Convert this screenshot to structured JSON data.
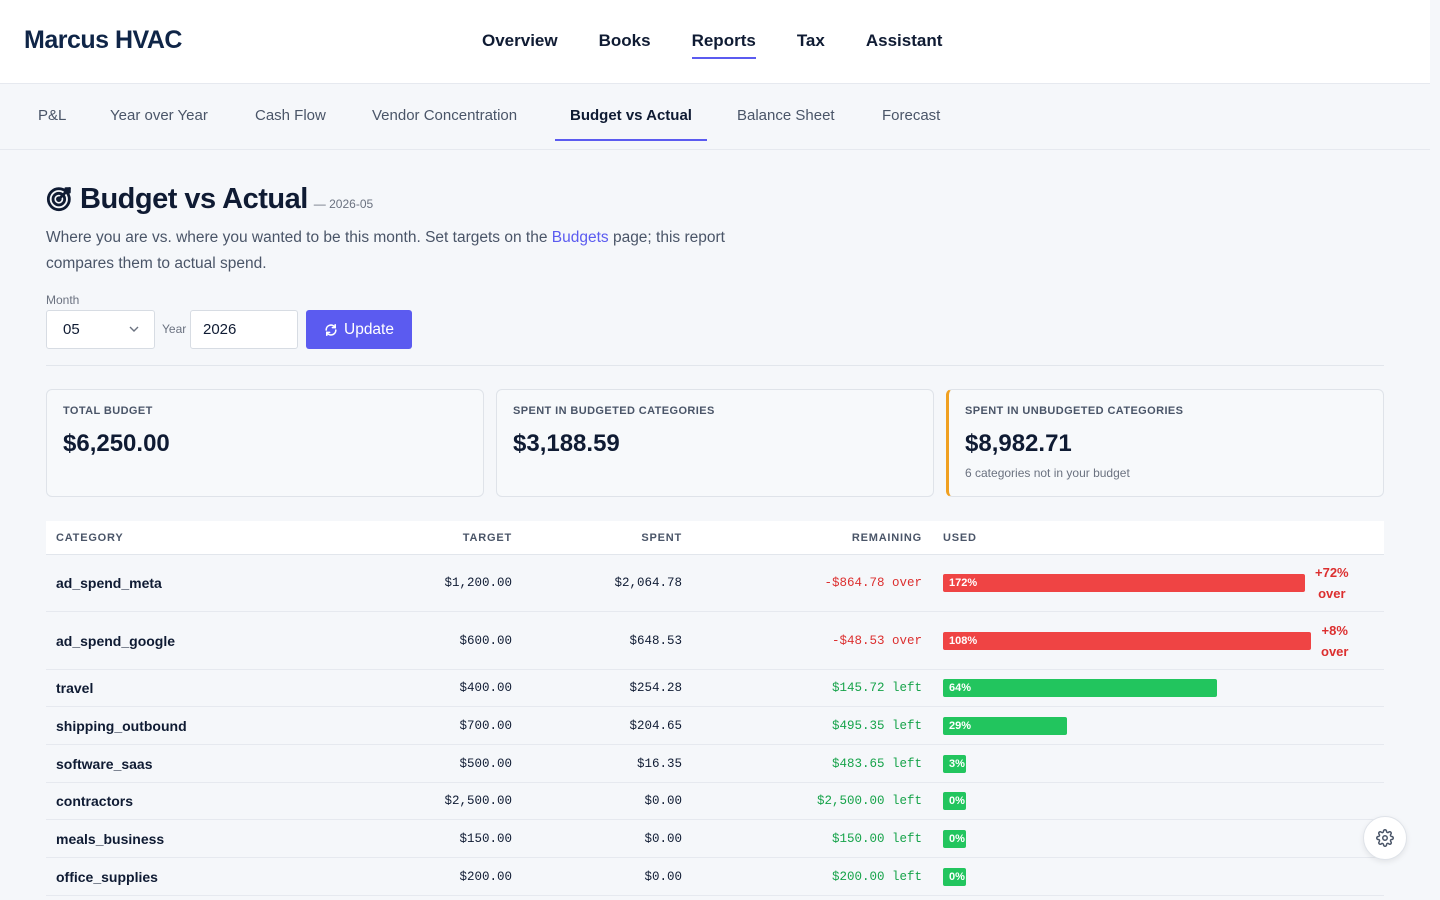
{
  "brand": "Marcus HVAC",
  "nav": {
    "items": [
      {
        "label": "Overview"
      },
      {
        "label": "Books"
      },
      {
        "label": "Reports"
      },
      {
        "label": "Tax"
      },
      {
        "label": "Assistant"
      }
    ],
    "active": "Reports"
  },
  "subnav": {
    "tabs": [
      {
        "label": "P&L"
      },
      {
        "label": "Year over Year"
      },
      {
        "label": "Cash Flow"
      },
      {
        "label": "Vendor Concentration"
      },
      {
        "label": "Budget vs Actual"
      },
      {
        "label": "Balance Sheet"
      },
      {
        "label": "Forecast"
      }
    ],
    "active": "Budget vs Actual"
  },
  "page": {
    "title": "Budget vs Actual",
    "period": "— 2026-05",
    "desc_before": "Where you are vs. where you wanted to be this month. Set targets on the ",
    "desc_link": "Budgets",
    "desc_after": " page; this report compares them to actual spend."
  },
  "filters": {
    "month_label": "Month",
    "month_value": "05",
    "year_label": "Year",
    "year_value": "2026",
    "update_label": "Update"
  },
  "cards": [
    {
      "label": "TOTAL BUDGET",
      "value": "$6,250.00",
      "note": ""
    },
    {
      "label": "SPENT IN BUDGETED CATEGORIES",
      "value": "$3,188.59",
      "note": ""
    },
    {
      "label": "SPENT IN UNBUDGETED CATEGORIES",
      "value": "$8,982.71",
      "note": "6 categories not in your budget"
    }
  ],
  "table": {
    "headers": {
      "category": "CATEGORY",
      "target": "TARGET",
      "spent": "SPENT",
      "remaining": "REMAINING",
      "used": "USED"
    },
    "rows": [
      {
        "category": "ad_spend_meta",
        "target": "$1,200.00",
        "spent": "$2,064.78",
        "remaining": "-$864.78 over",
        "status": "over",
        "used_pct": 172,
        "used_label": "172%",
        "over_tag_1": "+72%",
        "over_tag_2": "over"
      },
      {
        "category": "ad_spend_google",
        "target": "$600.00",
        "spent": "$648.53",
        "remaining": "-$48.53 over",
        "status": "over",
        "used_pct": 108,
        "used_label": "108%",
        "over_tag_1": "+8%",
        "over_tag_2": "over"
      },
      {
        "category": "travel",
        "target": "$400.00",
        "spent": "$254.28",
        "remaining": "$145.72 left",
        "status": "left",
        "used_pct": 64,
        "used_label": "64%"
      },
      {
        "category": "shipping_outbound",
        "target": "$700.00",
        "spent": "$204.65",
        "remaining": "$495.35 left",
        "status": "left",
        "used_pct": 29,
        "used_label": "29%"
      },
      {
        "category": "software_saas",
        "target": "$500.00",
        "spent": "$16.35",
        "remaining": "$483.65 left",
        "status": "left",
        "used_pct": 3,
        "used_label": "3%"
      },
      {
        "category": "contractors",
        "target": "$2,500.00",
        "spent": "$0.00",
        "remaining": "$2,500.00 left",
        "status": "left",
        "used_pct": 0,
        "used_label": "0%"
      },
      {
        "category": "meals_business",
        "target": "$150.00",
        "spent": "$0.00",
        "remaining": "$150.00 left",
        "status": "left",
        "used_pct": 0,
        "used_label": "0%"
      },
      {
        "category": "office_supplies",
        "target": "$200.00",
        "spent": "$0.00",
        "remaining": "$200.00 left",
        "status": "left",
        "used_pct": 0,
        "used_label": "0%"
      }
    ]
  },
  "colors": {
    "accent": "#5b5bf0",
    "over": "#ef4444",
    "under": "#22c55e",
    "warn_border": "#f0a020"
  },
  "icons": {
    "title_icon": "target-icon",
    "update_icon": "refresh-icon",
    "fab_icon": "gear-icon"
  }
}
